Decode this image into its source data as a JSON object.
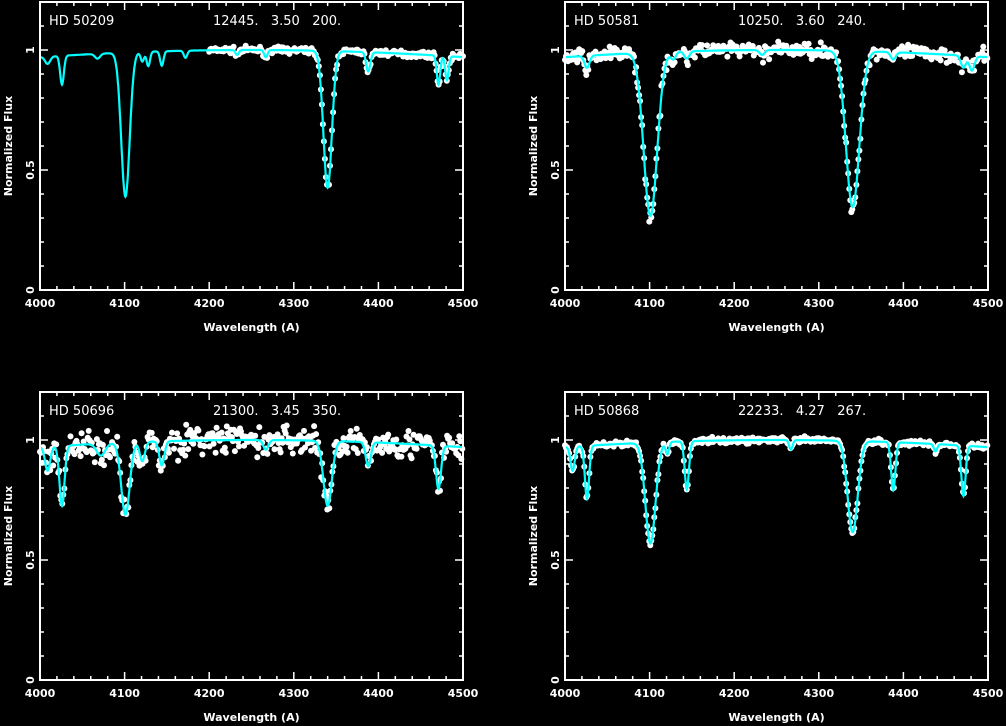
{
  "chart_data": [
    {
      "type": "line",
      "title": "HD 50209",
      "params": "12445.   3.50   200.",
      "xlabel": "Wavelength (A)",
      "ylabel": "Normalized Flux",
      "xlim": [
        4000,
        4500
      ],
      "ylim": [
        0,
        1.2
      ],
      "xticks": [
        "4000",
        "4100",
        "4200",
        "4300",
        "4400",
        "4500"
      ],
      "yticks": [
        "0",
        "0.5",
        "1"
      ],
      "observed_range": [
        4200,
        4500
      ],
      "observed_scatter": 0.012,
      "model_lines": [
        [
          4009,
          0.03,
          3
        ],
        [
          4026,
          0.12,
          2.2
        ],
        [
          4068,
          0.02,
          3
        ],
        [
          4101,
          0.6,
          5
        ],
        [
          4121,
          0.04,
          2
        ],
        [
          4128,
          0.06,
          2
        ],
        [
          4144,
          0.06,
          2
        ],
        [
          4172,
          0.03,
          2
        ],
        [
          4233,
          0.02,
          2
        ],
        [
          4267,
          0.03,
          2
        ],
        [
          4340,
          0.57,
          5
        ],
        [
          4388,
          0.08,
          2.5
        ],
        [
          4471,
          0.12,
          2
        ],
        [
          4481,
          0.1,
          2
        ]
      ],
      "colors": {
        "model": "#00ffff",
        "observed": "#ffffff"
      }
    },
    {
      "type": "line",
      "title": "HD 50581",
      "params": "10250.   3.60   240.",
      "xlabel": "Wavelength (A)",
      "ylabel": "Normalized Flux",
      "xlim": [
        4000,
        4500
      ],
      "ylim": [
        0,
        1.2
      ],
      "xticks": [
        "4000",
        "4100",
        "4200",
        "4300",
        "4400",
        "4500"
      ],
      "yticks": [
        "0",
        "0.5",
        "1"
      ],
      "observed_range": [
        4000,
        4500
      ],
      "observed_scatter": 0.03,
      "model_lines": [
        [
          4026,
          0.05,
          3
        ],
        [
          4101,
          0.68,
          8
        ],
        [
          4128,
          0.03,
          3
        ],
        [
          4144,
          0.03,
          3
        ],
        [
          4233,
          0.02,
          3
        ],
        [
          4340,
          0.65,
          8
        ],
        [
          4388,
          0.03,
          3
        ],
        [
          4471,
          0.05,
          3
        ],
        [
          4481,
          0.06,
          3
        ]
      ],
      "colors": {
        "model": "#00ffff",
        "observed": "#ffffff"
      }
    },
    {
      "type": "line",
      "title": "HD 50696",
      "params": "21300.   3.45   350.",
      "xlabel": "Wavelength (A)",
      "ylabel": "Normalized Flux",
      "xlim": [
        4000,
        4500
      ],
      "ylim": [
        0,
        1.2
      ],
      "xticks": [
        "4000",
        "4100",
        "4200",
        "4300",
        "4400",
        "4500"
      ],
      "yticks": [
        "0",
        "0.5",
        "1"
      ],
      "observed_range": [
        4000,
        4500
      ],
      "observed_scatter": 0.06,
      "model_lines": [
        [
          4009,
          0.1,
          3
        ],
        [
          4026,
          0.25,
          3
        ],
        [
          4072,
          0.05,
          5
        ],
        [
          4101,
          0.3,
          5
        ],
        [
          4121,
          0.08,
          3
        ],
        [
          4144,
          0.1,
          3
        ],
        [
          4267,
          0.04,
          3
        ],
        [
          4340,
          0.27,
          5
        ],
        [
          4388,
          0.1,
          3
        ],
        [
          4471,
          0.18,
          3
        ]
      ],
      "colors": {
        "model": "#00ffff",
        "observed": "#ffffff"
      }
    },
    {
      "type": "line",
      "title": "HD 50868",
      "params": "22233.   4.27   267.",
      "xlabel": "Wavelength (A)",
      "ylabel": "Normalized Flux",
      "xlim": [
        4000,
        4500
      ],
      "ylim": [
        0,
        1.2
      ],
      "xticks": [
        "4000",
        "4100",
        "4200",
        "4300",
        "4400",
        "4500"
      ],
      "yticks": [
        "0",
        "0.5",
        "1"
      ],
      "observed_range": [
        4000,
        4500
      ],
      "observed_scatter": 0.012,
      "model_lines": [
        [
          4009,
          0.1,
          2.5
        ],
        [
          4026,
          0.22,
          2.5
        ],
        [
          4101,
          0.42,
          6
        ],
        [
          4121,
          0.05,
          2
        ],
        [
          4144,
          0.2,
          2.5
        ],
        [
          4267,
          0.04,
          2
        ],
        [
          4340,
          0.38,
          6
        ],
        [
          4388,
          0.2,
          2.5
        ],
        [
          4438,
          0.03,
          2
        ],
        [
          4471,
          0.21,
          2.5
        ]
      ],
      "colors": {
        "model": "#00ffff",
        "observed": "#ffffff"
      }
    }
  ]
}
